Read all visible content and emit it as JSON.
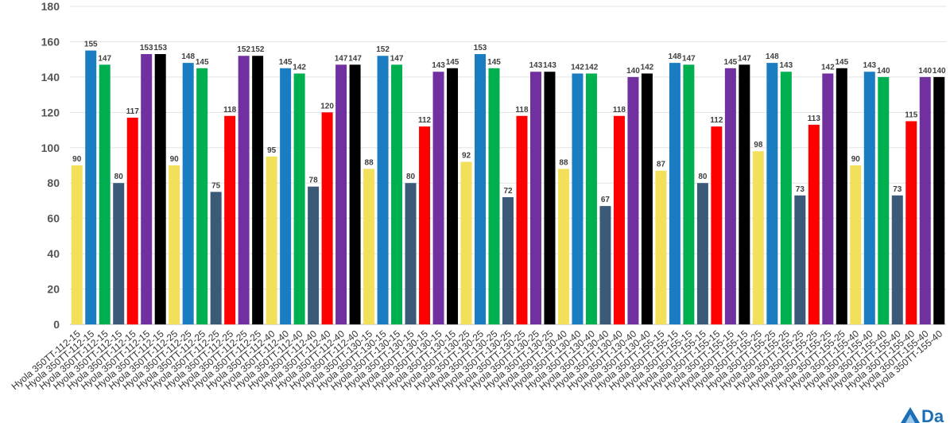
{
  "chart_data": {
    "type": "bar",
    "title": "",
    "xlabel": "",
    "ylabel": "",
    "ylim": [
      0,
      180
    ],
    "yticks": [
      0,
      20,
      40,
      60,
      80,
      100,
      120,
      140,
      160,
      180
    ],
    "grid": true,
    "legend": "none",
    "colors": [
      "#f2df5a",
      "#1a7cc1",
      "#00b050",
      "#3a5a78",
      "#ff0000",
      "#7030a0",
      "#000000"
    ],
    "categories": [
      "Hyola 350TT-112-15",
      "Hyola 350TT-112-15",
      "Hyola 350TT-112-15",
      "Hyola 350TT-112-15",
      "Hyola 350TT-112-15",
      "Hyola 350TT-112-15",
      "Hyola 350TT-112-15",
      "Hyola 350TT-112-25",
      "Hyola 350TT-112-25",
      "Hyola 350TT-112-25",
      "Hyola 350TT-112-25",
      "Hyola 350TT-112-25",
      "Hyola 350TT-112-25",
      "Hyola 350TT-112-25",
      "Hyola 350TT-112-40",
      "Hyola 350TT-112-40",
      "Hyola 350TT-112-40",
      "Hyola 350TT-112-40",
      "Hyola 350TT-112-40",
      "Hyola 350TT-112-40",
      "Hyola 350TT-112-40",
      "Hyola 350TT-130-15",
      "Hyola 350TT-130-15",
      "Hyola 350TT-130-15",
      "Hyola 350TT-130-15",
      "Hyola 350TT-130-15",
      "Hyola 350TT-130-15",
      "Hyola 350TT-130-15",
      "Hyola 350TT-130-25",
      "Hyola 350TT-130-25",
      "Hyola 350TT-130-25",
      "Hyola 350TT-130-25",
      "Hyola 350TT-130-25",
      "Hyola 350TT-130-25",
      "Hyola 350TT-130-25",
      "Hyola 350TT-130-40",
      "Hyola 350TT-130-40",
      "Hyola 350TT-130-40",
      "Hyola 350TT-130-40",
      "Hyola 350TT-130-40",
      "Hyola 350TT-130-40",
      "Hyola 350TT-130-40",
      "Hyola 350TT-155-15",
      "Hyola 350TT-155-15",
      "Hyola 350TT-155-15",
      "Hyola 350TT-155-15",
      "Hyola 350TT-155-15",
      "Hyola 350TT-155-15",
      "Hyola 350TT-155-15",
      "Hyola 350TT-155-25",
      "Hyola 350TT-155-25",
      "Hyola 350TT-155-25",
      "Hyola 350TT-155-25",
      "Hyola 350TT-155-25",
      "Hyola 350TT-155-25",
      "Hyola 350TT-155-25",
      "Hyola 350TT-155-40",
      "Hyola 350TT-155-40",
      "Hyola 350TT-155-40",
      "Hyola 350TT-155-40",
      "Hyola 350TT-155-40",
      "Hyola 350TT-155-40",
      "Hyola 350TT-155-40"
    ],
    "values": [
      90,
      155,
      147,
      80,
      117,
      153,
      153,
      90,
      148,
      145,
      75,
      118,
      152,
      152,
      95,
      145,
      142,
      78,
      120,
      147,
      147,
      88,
      152,
      147,
      80,
      112,
      143,
      145,
      92,
      153,
      145,
      72,
      118,
      143,
      143,
      88,
      142,
      142,
      67,
      118,
      140,
      142,
      87,
      148,
      147,
      80,
      112,
      145,
      147,
      98,
      148,
      143,
      73,
      113,
      142,
      145,
      90,
      143,
      140,
      73,
      115,
      140,
      140
    ]
  },
  "logo": {
    "text": "Da",
    "color": "#1a6fb5"
  }
}
